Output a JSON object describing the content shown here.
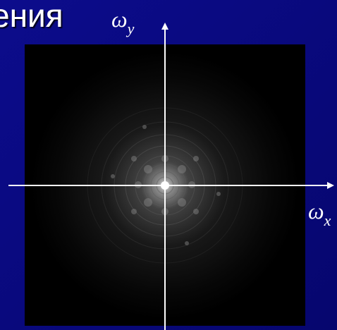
{
  "slide": {
    "title_fragment": "ения",
    "axis_y": {
      "symbol": "ω",
      "subscript": "y"
    },
    "axis_x": {
      "symbol": "ω",
      "subscript": "x"
    }
  }
}
